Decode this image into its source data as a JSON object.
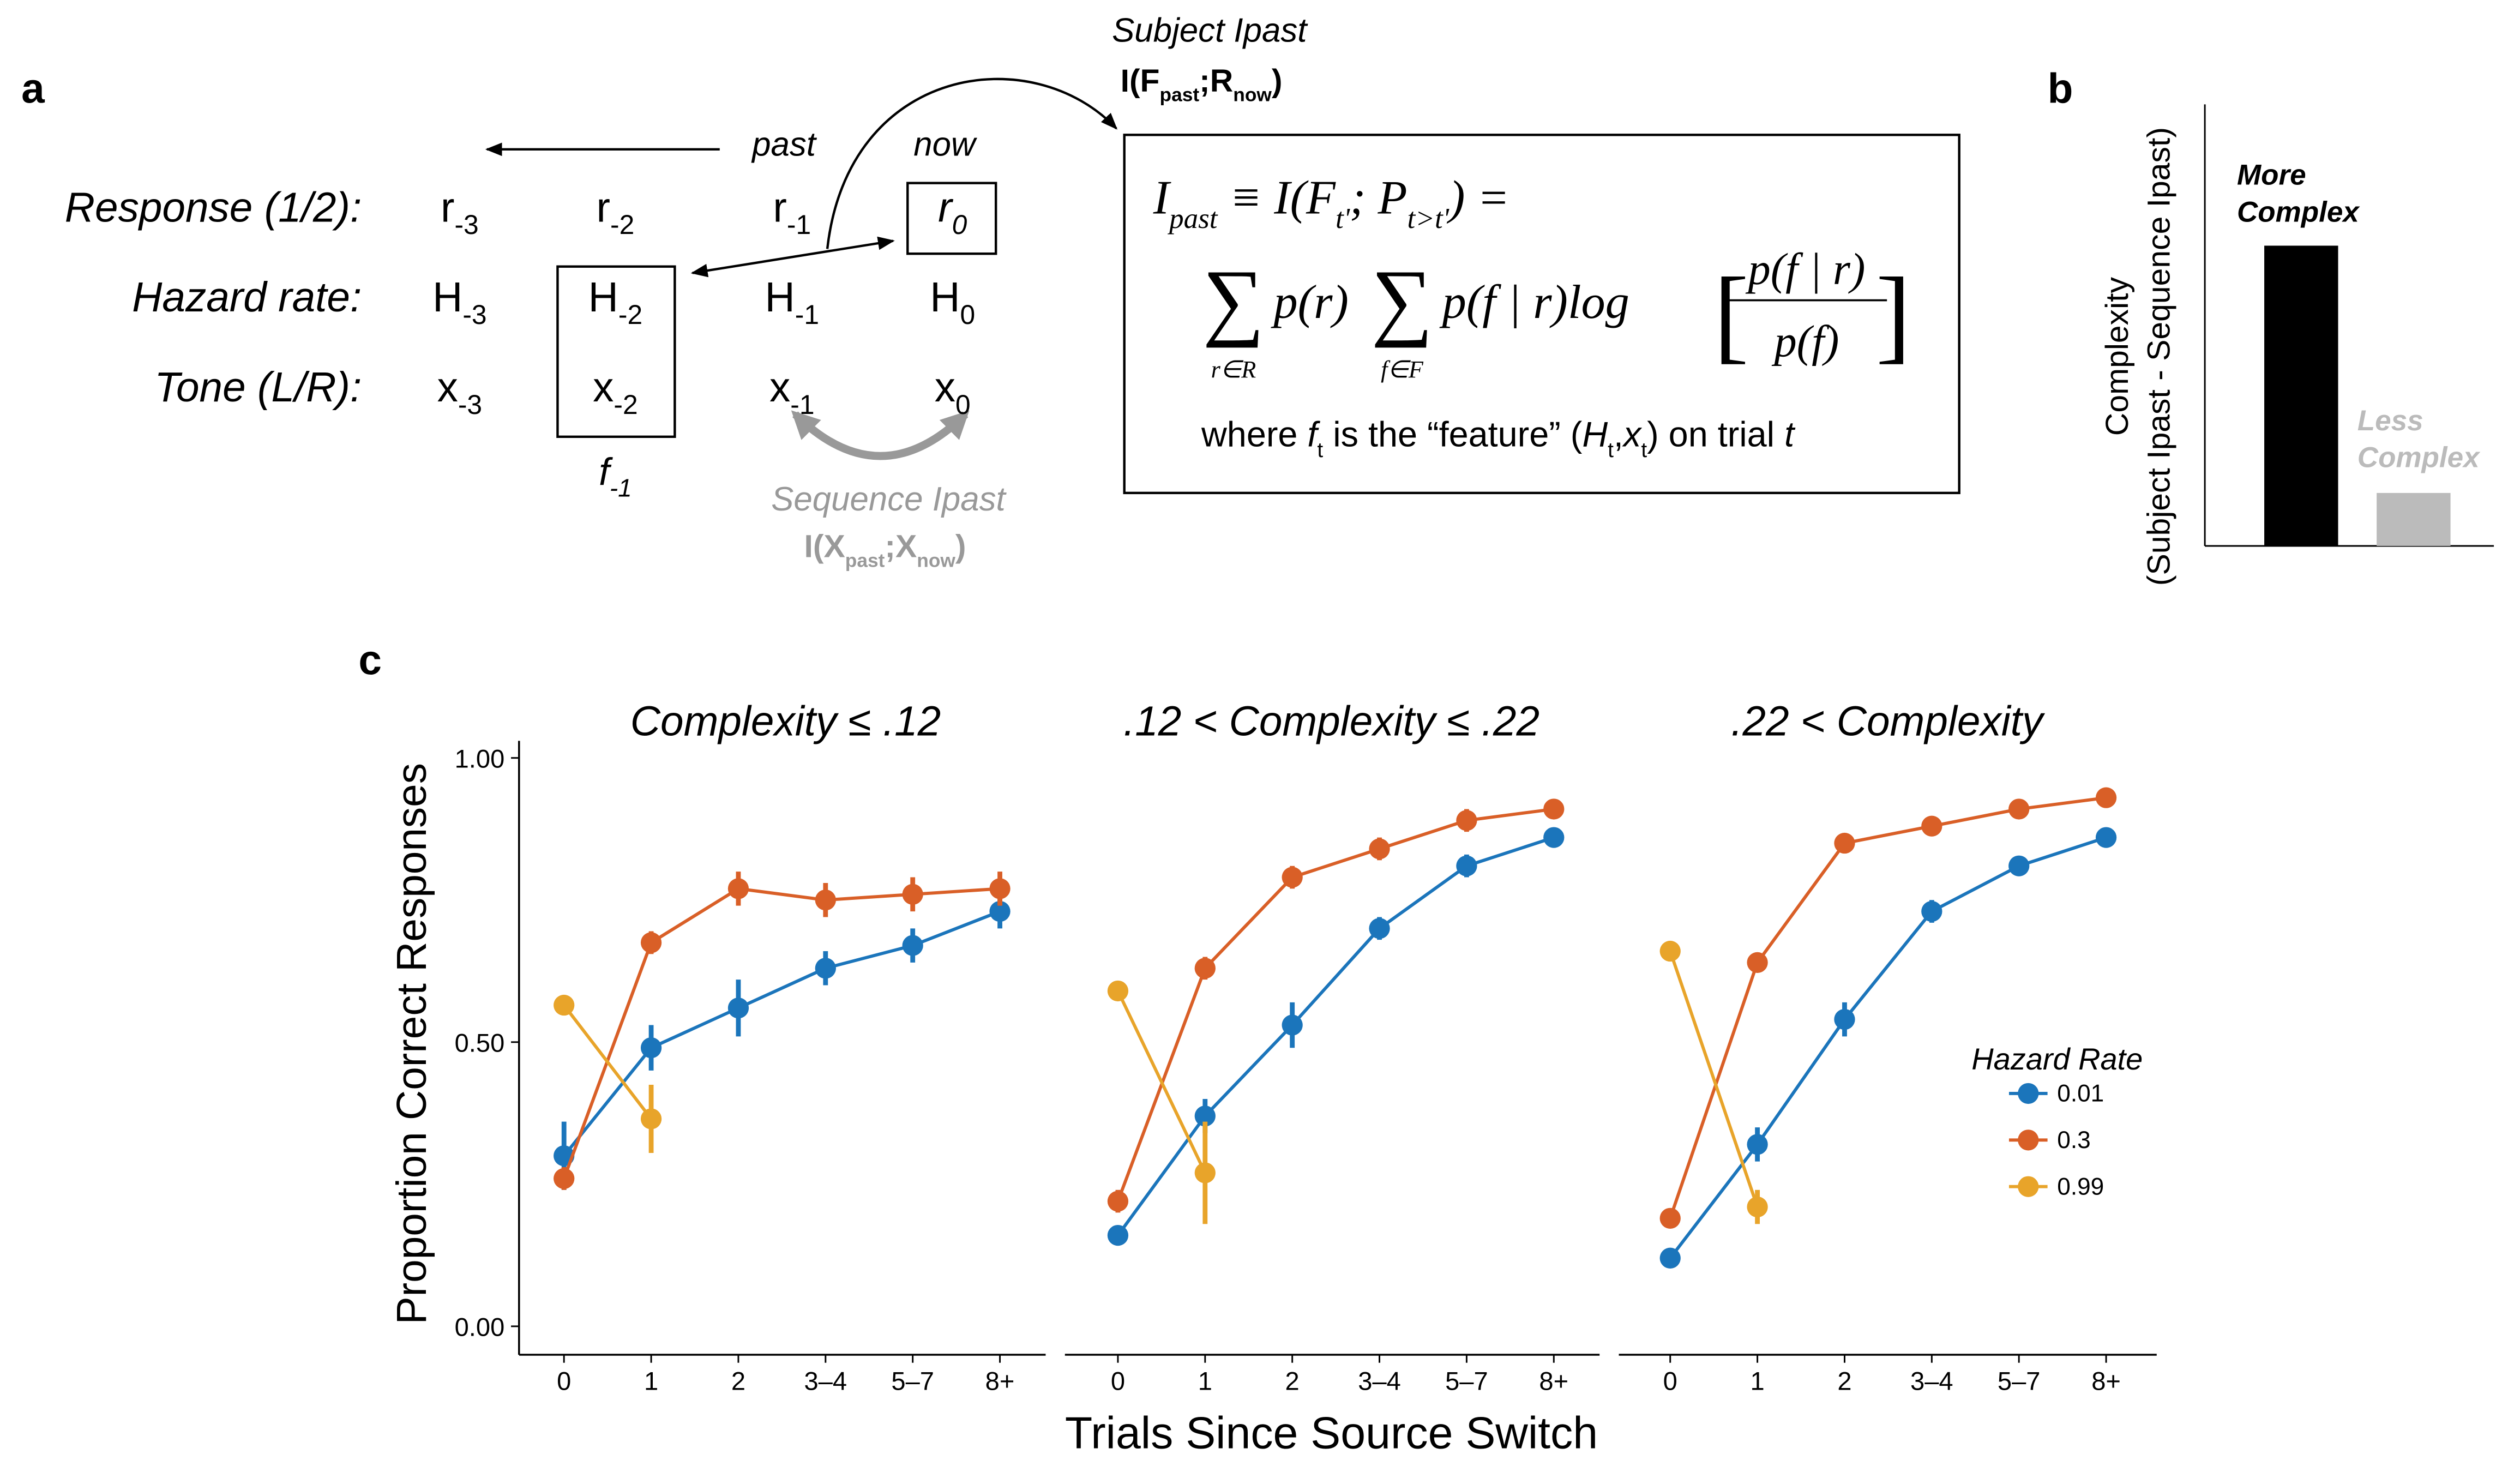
{
  "labels": {
    "a": "a",
    "b": "b",
    "c": "c"
  },
  "diagram": {
    "rows": [
      {
        "label": "Response (1/2):",
        "cells": [
          {
            "base": "r",
            "sub": "-3"
          },
          {
            "base": "r",
            "sub": "-2"
          },
          {
            "base": "r",
            "sub": "-1"
          },
          {
            "base": "r",
            "sub": "0"
          }
        ]
      },
      {
        "label": "Hazard rate:",
        "cells": [
          {
            "base": "H",
            "sub": "-3"
          },
          {
            "base": "H",
            "sub": "-2"
          },
          {
            "base": "H",
            "sub": "-1"
          },
          {
            "base": "H",
            "sub": "0"
          }
        ]
      },
      {
        "label": "Tone (L/R):",
        "cells": [
          {
            "base": "x",
            "sub": "-3"
          },
          {
            "base": "x",
            "sub": "-2"
          },
          {
            "base": "x",
            "sub": "-1"
          },
          {
            "base": "x",
            "sub": "0"
          }
        ]
      }
    ],
    "feature": {
      "base": "f",
      "sub": "-1"
    },
    "past": "past",
    "now": "now",
    "subject": {
      "title": "Subject Ipast",
      "formula": [
        "I(F",
        {
          "sub": "past"
        },
        ";R",
        {
          "sub": "now"
        },
        ")"
      ]
    },
    "sequence": {
      "title": "Sequence Ipast",
      "formula": [
        "I(X",
        {
          "sub": "past"
        },
        ";X",
        {
          "sub": "now"
        },
        ")"
      ]
    },
    "formula": {
      "lhs": [
        "I",
        {
          "sub": "past"
        },
        " ≡ I(F",
        {
          "sub": "t'"
        },
        "; P",
        {
          "sub": "t>t'"
        },
        ") ="
      ],
      "sum1": "∑",
      "sum1_sub": "r∈R",
      "term1": "p(r)",
      "sum2": "∑",
      "sum2_sub": "f∈F",
      "term2": "p(f | r)log",
      "open": "[",
      "numerator": "p(f | r)",
      "denominator": "p(f)",
      "close": "]",
      "where": [
        "where ",
        {
          "it": "f"
        },
        {
          "sub": "t"
        },
        " is the “feature” (",
        {
          "it": "H"
        },
        {
          "sub": "t"
        },
        ",",
        {
          "it": "x"
        },
        {
          "sub": "t"
        },
        ") on trial ",
        {
          "it": "t"
        }
      ]
    }
  },
  "chart_data": [
    {
      "type": "bar",
      "ylabel": [
        "Complexity",
        "(Subject Ipast - Sequence Ipast)"
      ],
      "values": [
        0.68,
        0.12
      ],
      "colors": [
        "#000000",
        "#bbbbbb"
      ],
      "annotations": [
        [
          "More",
          "Complex"
        ],
        [
          "Less",
          "Complex"
        ]
      ],
      "ylim": [
        0,
        1
      ]
    },
    {
      "type": "line",
      "title": "Complexity ≤  .12",
      "ylabel": "Proportion Correct Responses",
      "categories": [
        "0",
        "1",
        "2",
        "3–4",
        "5–7",
        "8+"
      ],
      "ylim": [
        -0.05,
        1.03
      ],
      "yticks": [
        {
          "value": 0,
          "label": "0.00"
        },
        {
          "value": 0.5,
          "label": "0.50"
        },
        {
          "value": 1,
          "label": "1.00"
        }
      ],
      "series": [
        {
          "color": "#1b75bb",
          "values": [
            0.3,
            0.49,
            0.56,
            0.63,
            0.67,
            0.73
          ],
          "errors": [
            0.06,
            0.04,
            0.05,
            0.03,
            0.03,
            0.03
          ]
        },
        {
          "color": "#d95f27",
          "values": [
            0.26,
            0.675,
            0.77,
            0.75,
            0.76,
            0.77
          ],
          "errors": [
            0.02,
            0.02,
            0.03,
            0.03,
            0.03,
            0.03
          ]
        },
        {
          "color": "#e8a42a",
          "values": [
            0.565,
            0.365,
            null,
            null,
            null,
            null
          ],
          "errors": [
            0.01,
            0.06,
            null,
            null,
            null,
            null
          ]
        }
      ]
    },
    {
      "type": "line",
      "title": ".12 < Complexity ≤  .22",
      "xlabel": "Trials Since Source Switch",
      "categories": [
        "0",
        "1",
        "2",
        "3–4",
        "5–7",
        "8+"
      ],
      "ylim": [
        -0.05,
        1.03
      ],
      "series": [
        {
          "color": "#1b75bb",
          "values": [
            0.16,
            0.37,
            0.53,
            0.7,
            0.81,
            0.86
          ],
          "errors": [
            0.01,
            0.03,
            0.04,
            0.02,
            0.02,
            0.01
          ]
        },
        {
          "color": "#d95f27",
          "values": [
            0.22,
            0.63,
            0.79,
            0.84,
            0.89,
            0.91
          ],
          "errors": [
            0.02,
            0.02,
            0.02,
            0.02,
            0.02,
            0.01
          ]
        },
        {
          "color": "#e8a42a",
          "values": [
            0.59,
            0.27,
            null,
            null,
            null,
            null
          ],
          "errors": [
            0.01,
            0.09,
            null,
            null,
            null,
            null
          ]
        }
      ]
    },
    {
      "type": "line",
      "title": ".22 < Complexity",
      "categories": [
        "0",
        "1",
        "2",
        "3–4",
        "5–7",
        "8+"
      ],
      "ylim": [
        -0.05,
        1.03
      ],
      "legend_title": "Hazard Rate",
      "legend": "right",
      "series": [
        {
          "name": "0.01",
          "color": "#1b75bb",
          "values": [
            0.12,
            0.32,
            0.54,
            0.73,
            0.81,
            0.86
          ],
          "errors": [
            0.01,
            0.03,
            0.03,
            0.02,
            0.01,
            0.01
          ]
        },
        {
          "name": "0.3",
          "color": "#d95f27",
          "values": [
            0.19,
            0.64,
            0.85,
            0.88,
            0.91,
            0.93
          ],
          "errors": [
            0.01,
            0.01,
            0.01,
            0.01,
            0.01,
            0.01
          ]
        },
        {
          "name": "0.99",
          "color": "#e8a42a",
          "values": [
            0.66,
            0.21,
            null,
            null,
            null,
            null
          ],
          "errors": [
            0.01,
            0.03,
            null,
            null,
            null,
            null
          ]
        }
      ]
    }
  ]
}
